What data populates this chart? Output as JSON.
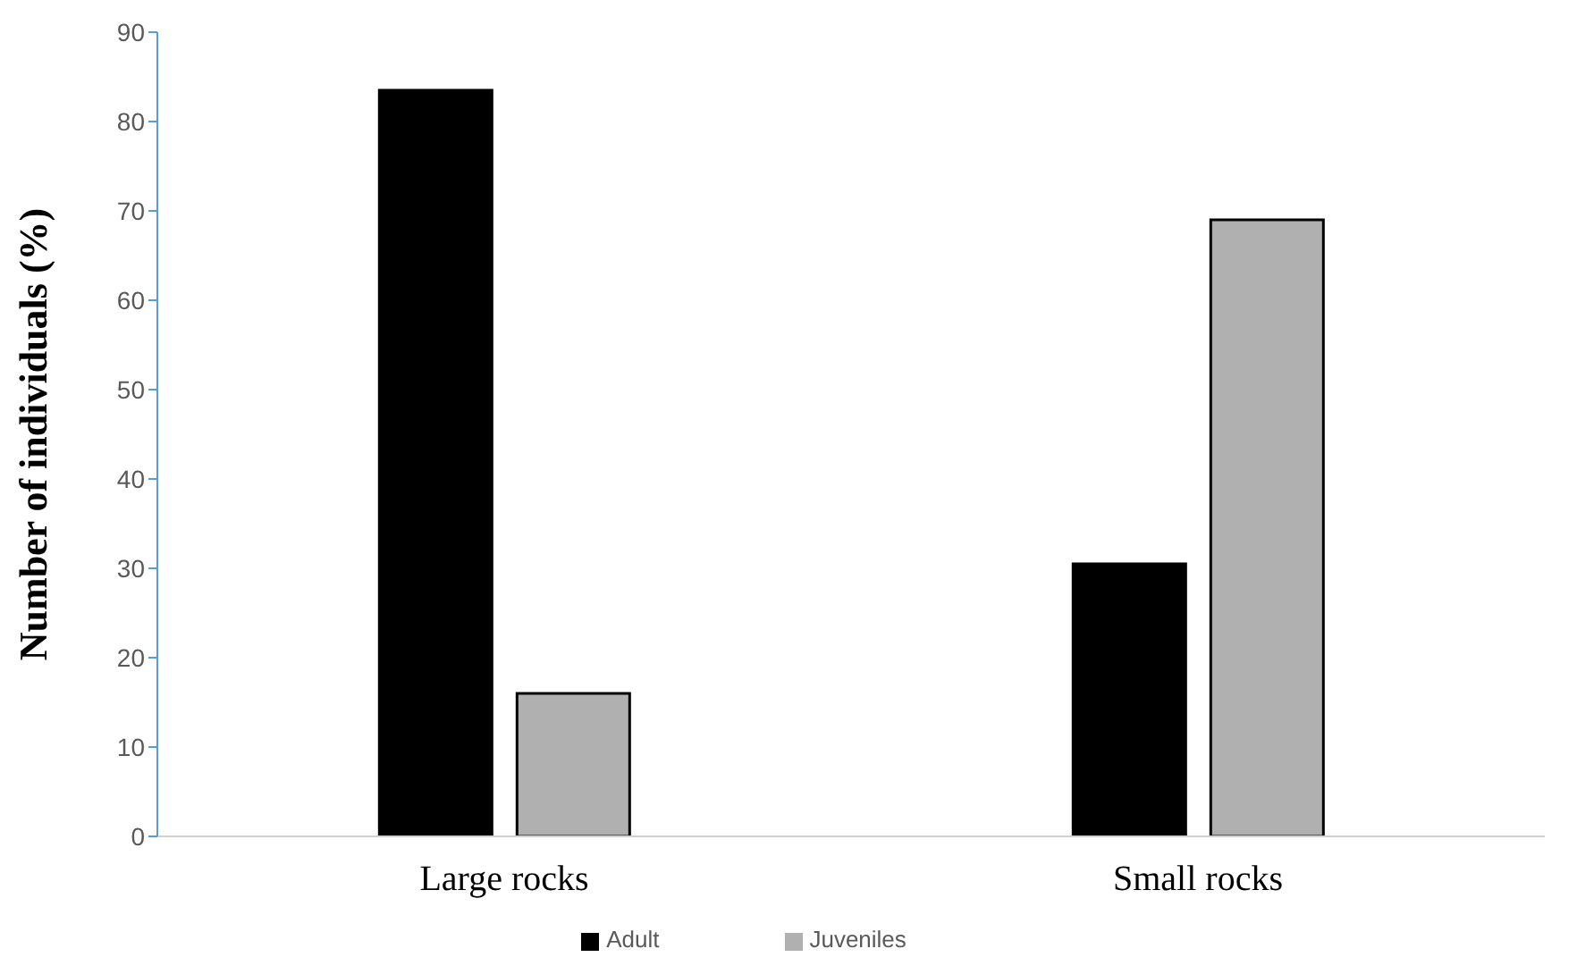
{
  "chart_data": {
    "type": "bar",
    "ylabel": "Number of individuals (%)",
    "categories": [
      "Large rocks",
      "Small rocks"
    ],
    "series": [
      {
        "name": "Adult",
        "color": "#000000",
        "values": [
          83.5,
          30.5
        ]
      },
      {
        "name": "Juveniles",
        "color": "#b0b0b0",
        "values": [
          16,
          69
        ]
      }
    ],
    "ylim": [
      0,
      90
    ],
    "yticks": [
      0,
      10,
      20,
      30,
      40,
      50,
      60,
      70,
      80,
      90
    ],
    "grid": false,
    "legend": "bottom"
  }
}
